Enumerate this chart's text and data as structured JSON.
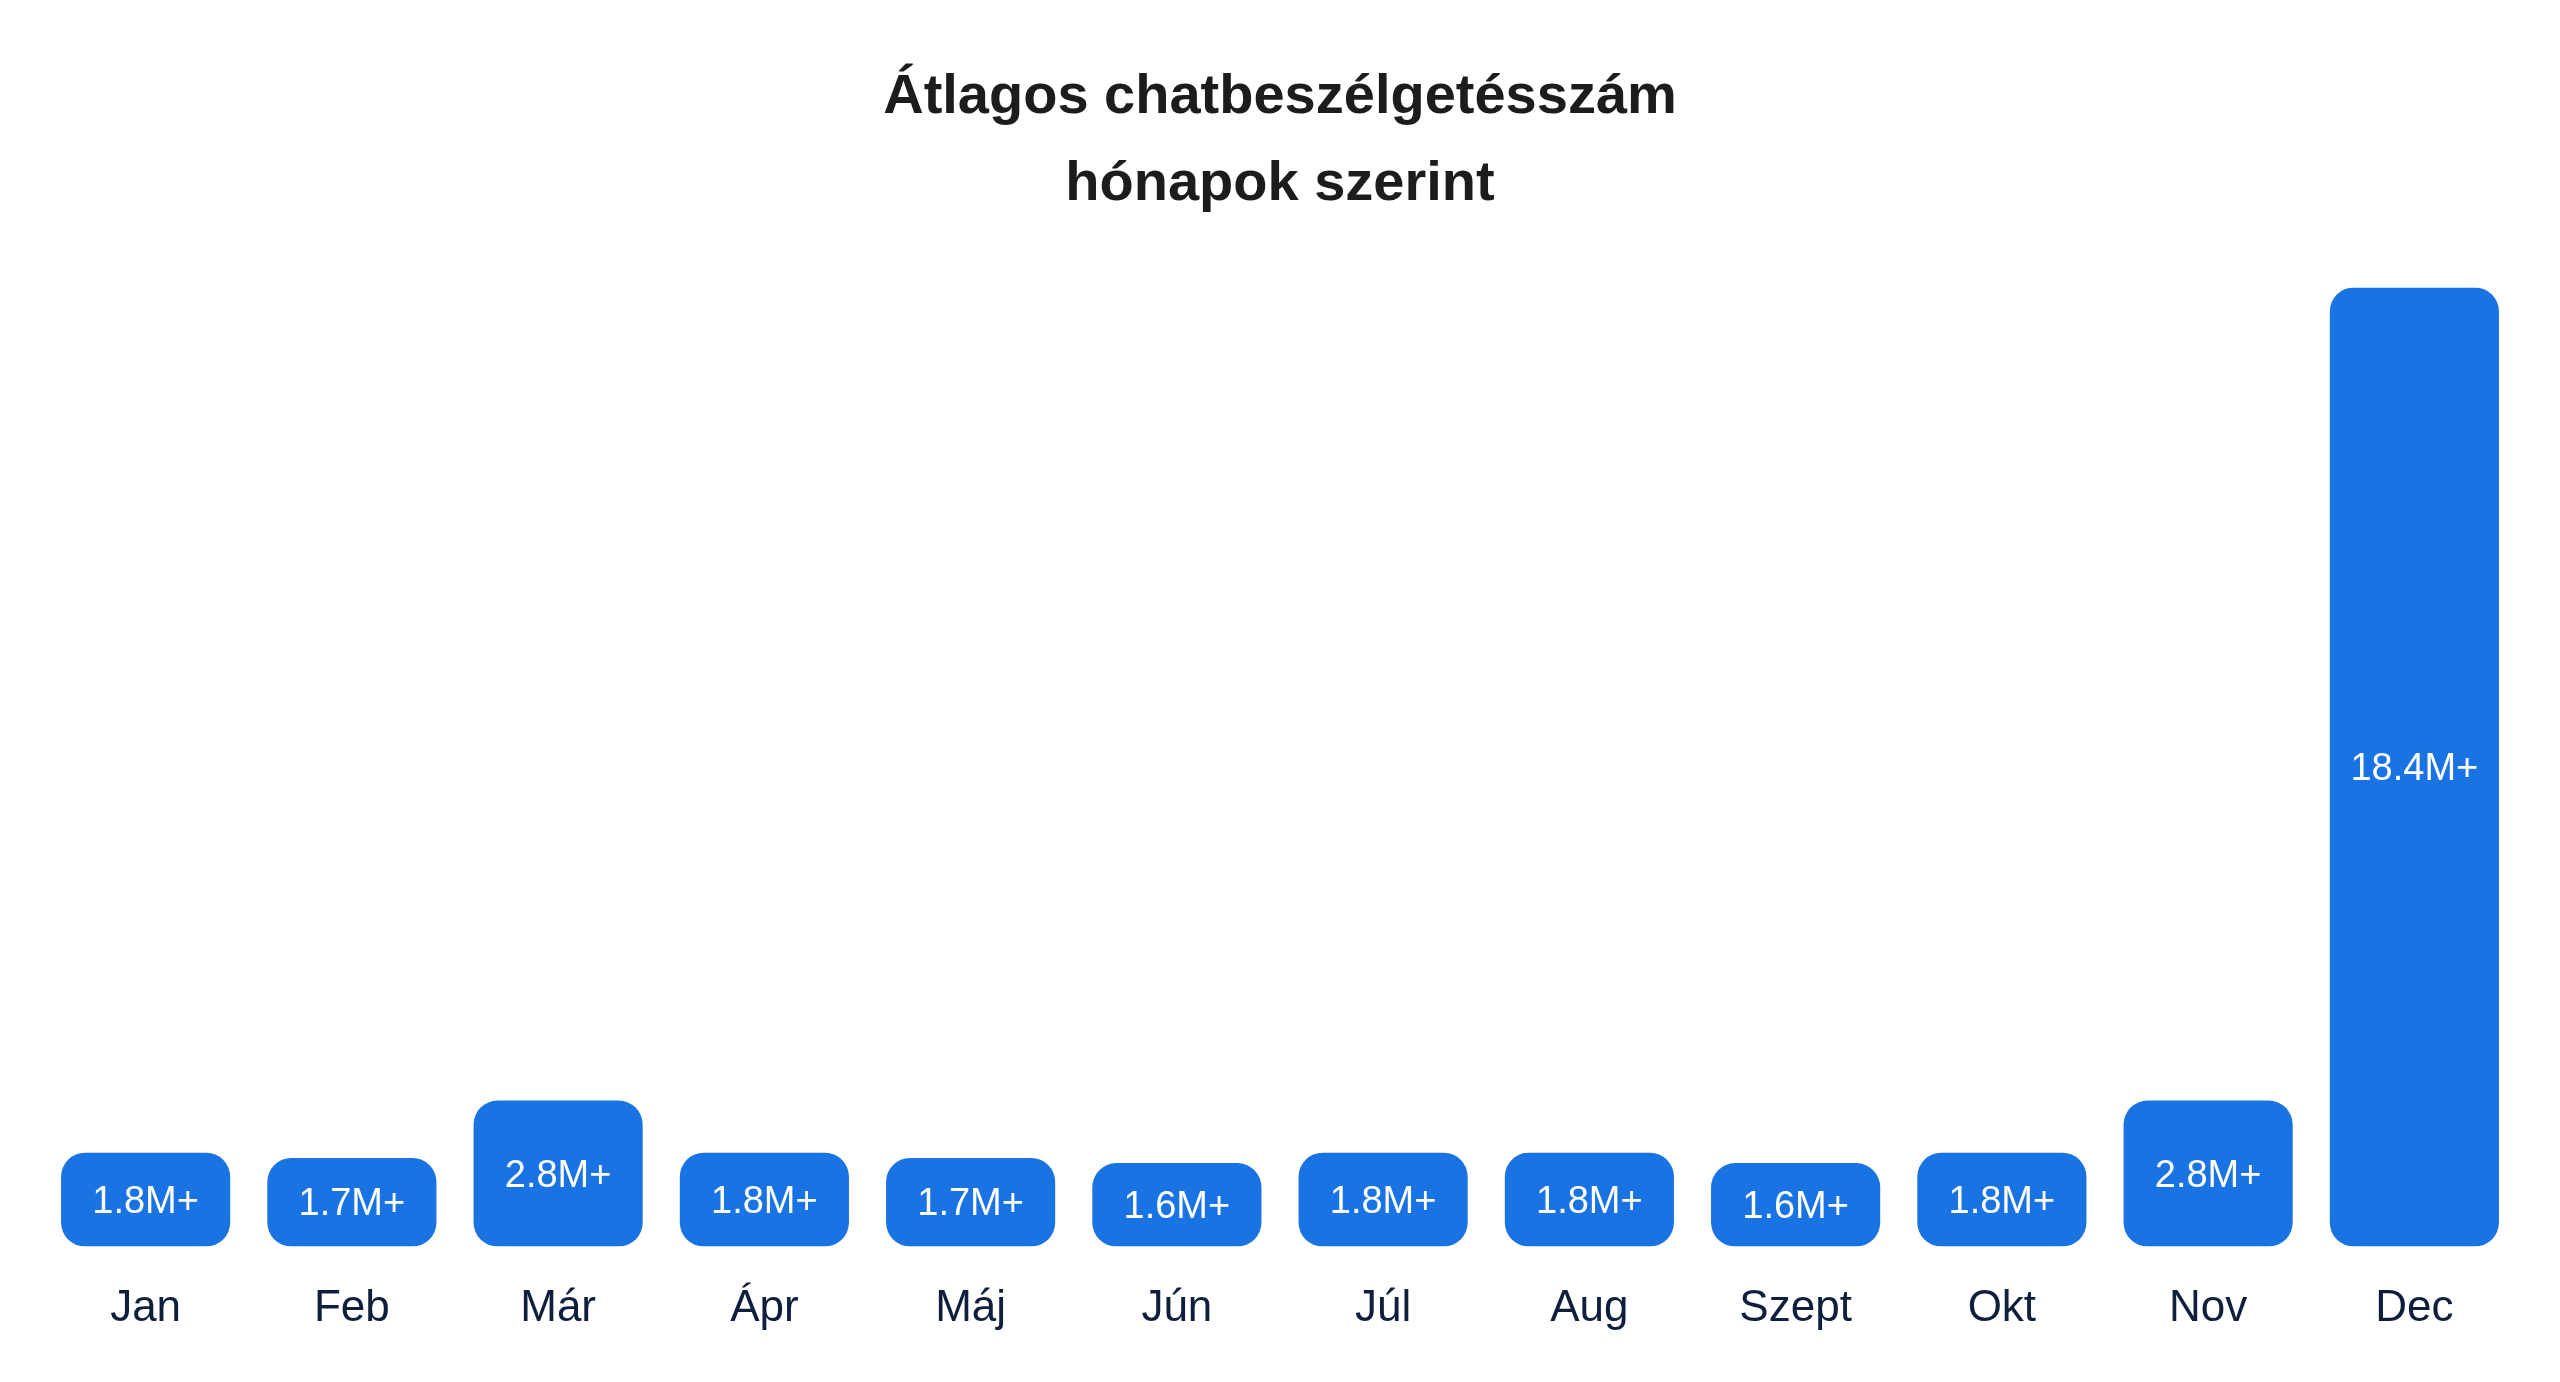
{
  "chart_data": {
    "type": "bar",
    "title": "Átlagos chatbeszélgetésszám\nhónapok szerint",
    "categories": [
      "Jan",
      "Feb",
      "Már",
      "Ápr",
      "Máj",
      "Jún",
      "Júl",
      "Aug",
      "Szept",
      "Okt",
      "Nov",
      "Dec"
    ],
    "values": [
      1.8,
      1.7,
      2.8,
      1.8,
      1.7,
      1.6,
      1.8,
      1.8,
      1.6,
      1.8,
      2.8,
      18.4
    ],
    "value_labels": [
      "1.8M+",
      "1.7M+",
      "2.8M+",
      "1.8M+",
      "1.7M+",
      "1.6M+",
      "1.8M+",
      "1.8M+",
      "1.6M+",
      "1.8M+",
      "2.8M+",
      "18.4M+"
    ],
    "color": "#1a73e3",
    "ylim": [
      0,
      18.4
    ],
    "tick_labels": "x",
    "grid": false
  }
}
